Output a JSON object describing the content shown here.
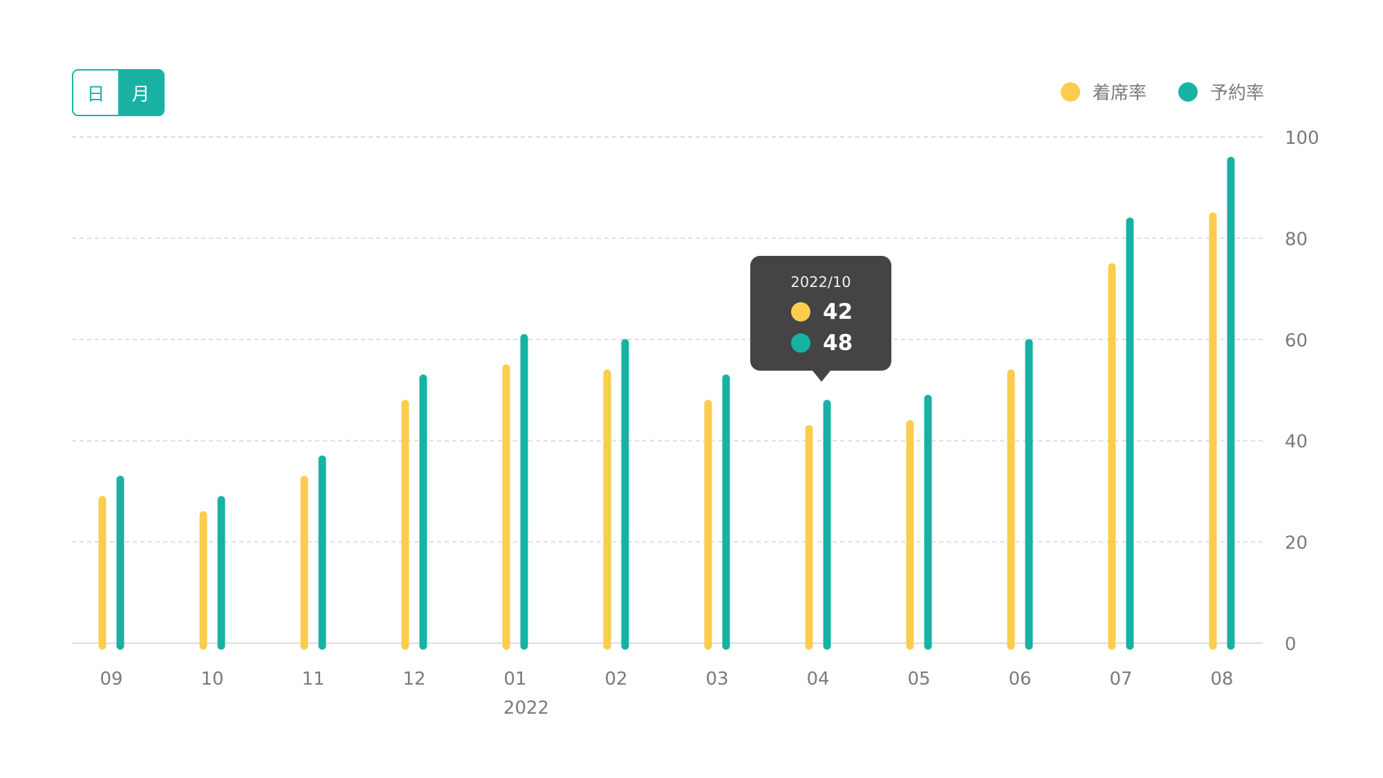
{
  "toggle": {
    "day_label": "日",
    "month_label": "月",
    "selected": "月"
  },
  "legend": [
    {
      "label": "着席率",
      "color": "#fbcd4d"
    },
    {
      "label": "予約率",
      "color": "#17b2a3"
    }
  ],
  "tooltip": {
    "date": "2022/10",
    "values": [
      {
        "value": "42",
        "color": "#fbcd4d"
      },
      {
        "value": "48",
        "color": "#17b2a3"
      }
    ]
  },
  "chart_data": {
    "type": "bar",
    "categories": [
      "09",
      "10",
      "11",
      "12",
      "01",
      "02",
      "03",
      "04",
      "05",
      "06",
      "07",
      "08"
    ],
    "year_label": "2022",
    "year_label_under": "01",
    "series": [
      {
        "name": "着席率",
        "color": "#fbcd4d",
        "values": [
          29,
          26,
          33,
          48,
          55,
          54,
          48,
          43,
          44,
          54,
          75,
          85
        ]
      },
      {
        "name": "予約率",
        "color": "#17b2a3",
        "values": [
          33,
          29,
          37,
          53,
          61,
          60,
          53,
          48,
          49,
          60,
          84,
          96
        ]
      }
    ],
    "ylim": [
      0,
      100
    ],
    "yticks": [
      0,
      20,
      40,
      60,
      80,
      100
    ],
    "y_axis_side": "right",
    "grid": true,
    "legend_position": "top-right"
  }
}
